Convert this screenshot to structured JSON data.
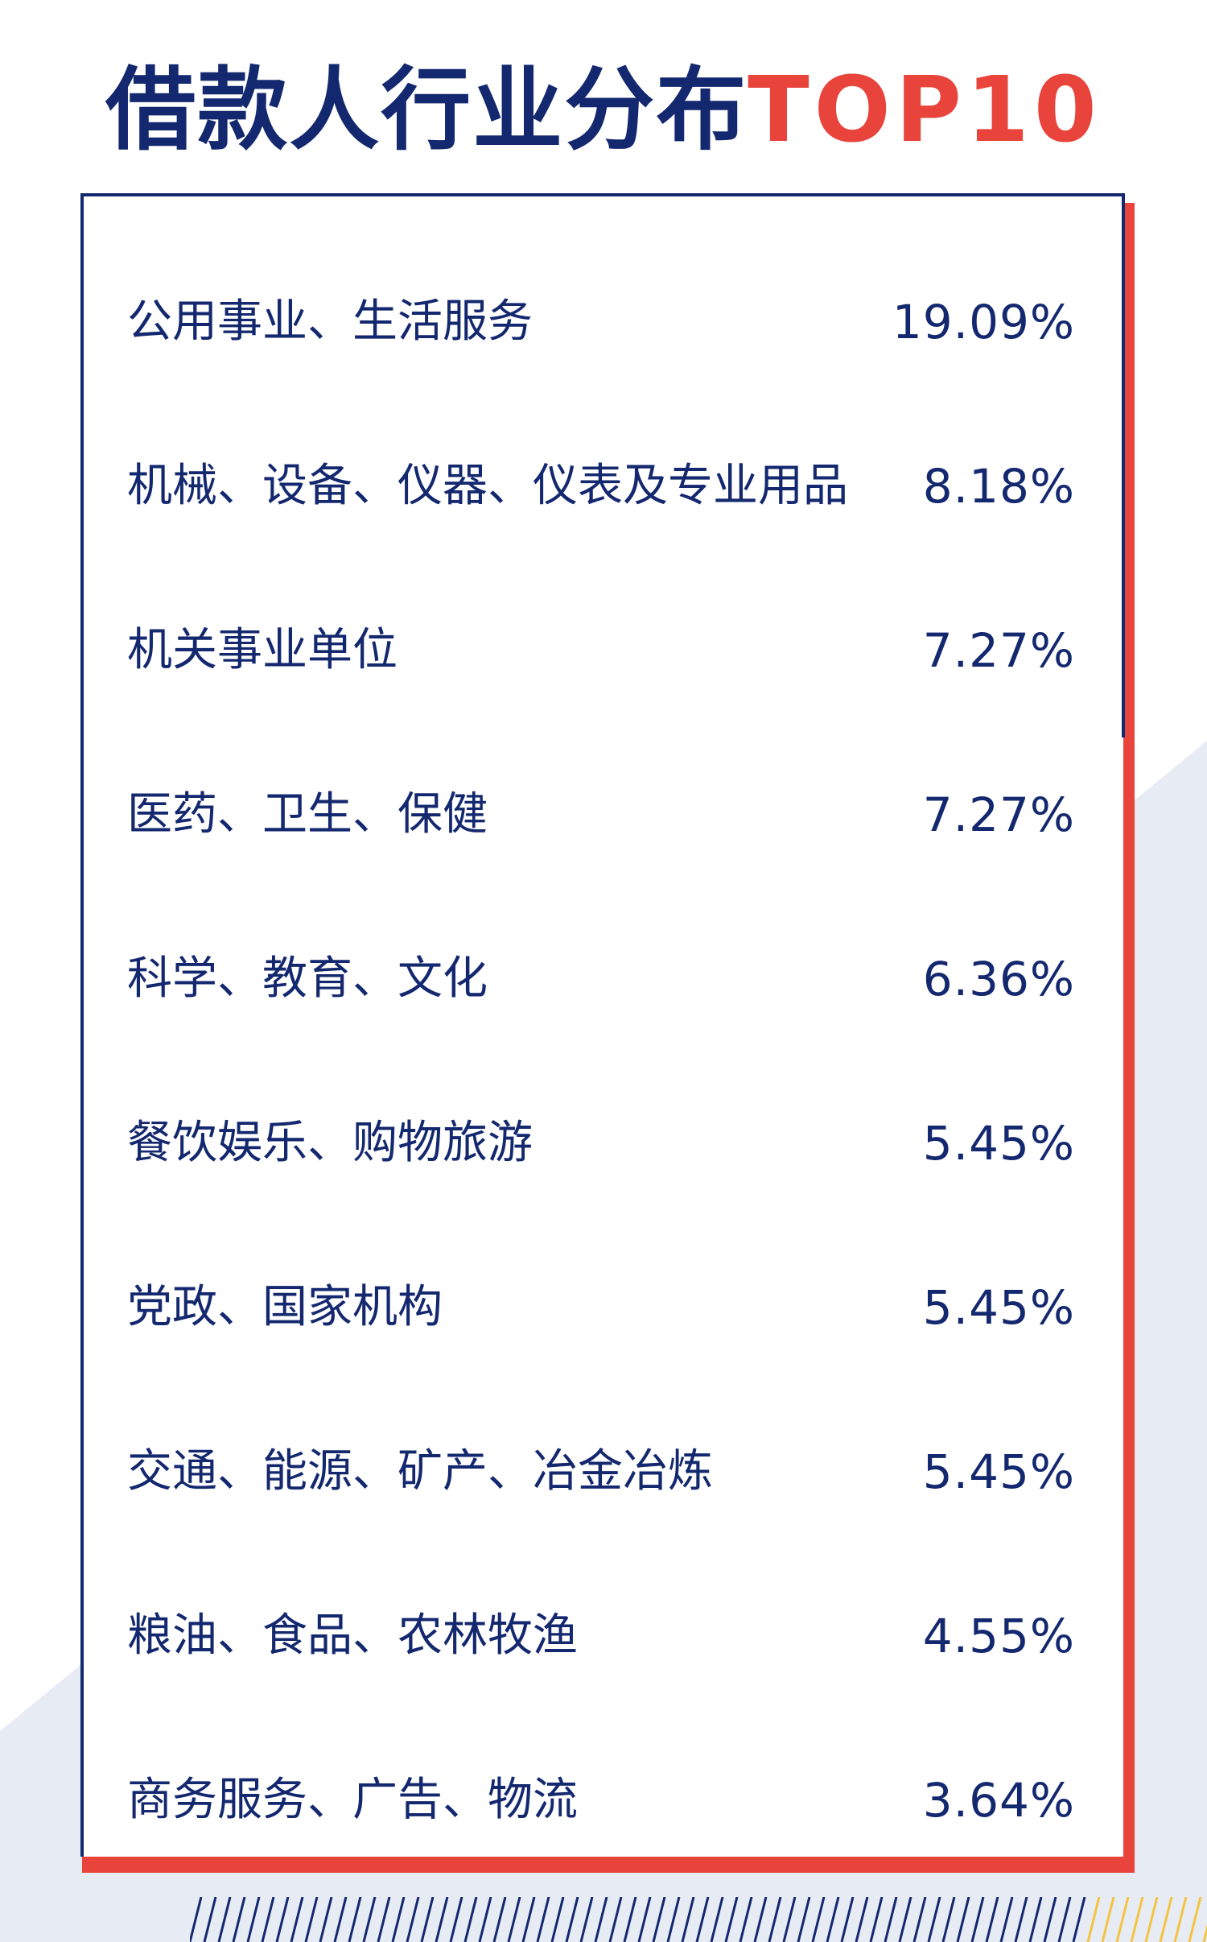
{
  "title": {
    "main": "借款人行业分布",
    "accent": "TOP10"
  },
  "colors": {
    "navy": "#14286f",
    "red": "#e8443c",
    "gray_bg": "#e7ebf3",
    "yellow": "#f5c342"
  },
  "chart_data": {
    "type": "table",
    "title": "借款人行业分布TOP10",
    "rows": [
      {
        "label": "公用事业、生活服务",
        "value": "19.09%"
      },
      {
        "label": "机械、设备、仪器、仪表及专业用品",
        "value": "8.18%"
      },
      {
        "label": "机关事业单位",
        "value": "7.27%"
      },
      {
        "label": "医药、卫生、保健",
        "value": "7.27%"
      },
      {
        "label": "科学、教育、文化",
        "value": "6.36%"
      },
      {
        "label": "餐饮娱乐、购物旅游",
        "value": "5.45%"
      },
      {
        "label": "党政、国家机构",
        "value": "5.45%"
      },
      {
        "label": "交通、能源、矿产、冶金冶炼",
        "value": "5.45%"
      },
      {
        "label": "粮油、食品、农林牧渔",
        "value": "4.55%"
      },
      {
        "label": "商务服务、广告、物流",
        "value": "3.64%"
      }
    ]
  }
}
